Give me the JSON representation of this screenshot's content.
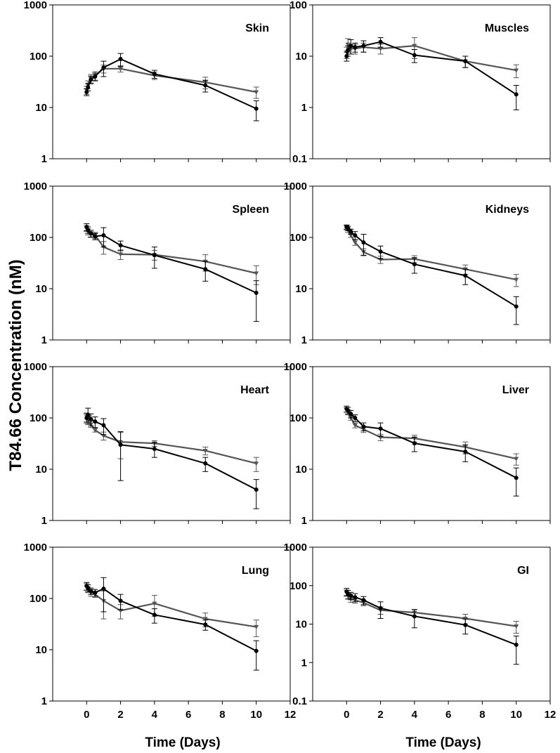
{
  "figure": {
    "ylabel": "T84.66 Concentration (nM)",
    "xlabel": "Time (Days)",
    "colors": {
      "series_black": "#000000",
      "series_gray": "#555555",
      "axis": "#000000"
    }
  },
  "chart_data": [
    {
      "type": "line",
      "title": "Skin",
      "ylim": [
        1,
        1000
      ],
      "yscale": "log",
      "xlim": [
        -2,
        12
      ],
      "xticks": [
        0,
        2,
        4,
        6,
        8,
        10,
        12
      ],
      "yticks": [
        1,
        10,
        100,
        1000
      ],
      "ytick_labels": [
        "1",
        "10",
        "100",
        "1000"
      ],
      "show_xtick_labels": false,
      "series": [
        {
          "name": "series_black",
          "x": [
            0,
            0.08,
            0.25,
            0.5,
            1,
            2,
            4,
            7,
            10
          ],
          "y": [
            20,
            25,
            35,
            40,
            60,
            88,
            45,
            27,
            9.5
          ],
          "err": [
            3,
            4,
            6,
            7,
            20,
            25,
            8,
            7,
            4
          ]
        },
        {
          "name": "series_gray",
          "x": [
            0,
            0.08,
            0.25,
            0.5,
            1,
            2,
            4,
            7,
            10
          ],
          "y": [
            22,
            28,
            37,
            42,
            57,
            57,
            42,
            31,
            20
          ],
          "err": [
            4,
            5,
            7,
            8,
            10,
            8,
            7,
            8,
            5
          ]
        }
      ]
    },
    {
      "type": "line",
      "title": "Muscles",
      "ylim": [
        0.1,
        100
      ],
      "yscale": "log",
      "xlim": [
        -2,
        12
      ],
      "xticks": [
        0,
        2,
        4,
        6,
        8,
        10,
        12
      ],
      "yticks": [
        0.1,
        1,
        10,
        100
      ],
      "ytick_labels": [
        "0.1",
        "1",
        "10",
        "100"
      ],
      "show_xtick_labels": false,
      "series": [
        {
          "name": "series_black",
          "x": [
            0,
            0.08,
            0.25,
            0.5,
            1,
            2,
            4,
            7,
            10
          ],
          "y": [
            10,
            13,
            16,
            15,
            16,
            19,
            10.5,
            8,
            1.8
          ],
          "err": [
            2,
            3,
            5,
            3,
            4,
            4,
            3,
            2,
            0.9
          ]
        },
        {
          "name": "series_gray",
          "x": [
            0,
            0.08,
            0.25,
            0.5,
            1,
            2,
            4,
            7,
            10
          ],
          "y": [
            12,
            17,
            14,
            14,
            15,
            14,
            16,
            8,
            5.3
          ],
          "err": [
            3,
            5,
            3,
            3,
            3,
            3,
            7,
            2,
            1.5
          ]
        }
      ]
    },
    {
      "type": "line",
      "title": "Spleen",
      "ylim": [
        1,
        1000
      ],
      "yscale": "log",
      "xlim": [
        -2,
        12
      ],
      "xticks": [
        0,
        2,
        4,
        6,
        8,
        10,
        12
      ],
      "yticks": [
        1,
        10,
        100,
        1000
      ],
      "ytick_labels": [
        "1",
        "10",
        "100",
        "1000"
      ],
      "show_xtick_labels": false,
      "series": [
        {
          "name": "series_black",
          "x": [
            0,
            0.08,
            0.25,
            0.5,
            1,
            2,
            4,
            7,
            10
          ],
          "y": [
            160,
            140,
            120,
            105,
            110,
            70,
            45,
            24,
            8.3
          ],
          "err": [
            25,
            20,
            18,
            15,
            45,
            15,
            20,
            10,
            6
          ]
        },
        {
          "name": "series_gray",
          "x": [
            0,
            0.08,
            0.25,
            0.5,
            1,
            2,
            4,
            7,
            10
          ],
          "y": [
            150,
            130,
            115,
            110,
            65,
            47,
            46,
            34,
            20
          ],
          "err": [
            20,
            18,
            15,
            15,
            18,
            10,
            10,
            12,
            8
          ]
        }
      ]
    },
    {
      "type": "line",
      "title": "Kidneys",
      "ylim": [
        1,
        1000
      ],
      "yscale": "log",
      "xlim": [
        -2,
        12
      ],
      "xticks": [
        0,
        2,
        4,
        6,
        8,
        10,
        12
      ],
      "yticks": [
        1,
        10,
        100,
        1000
      ],
      "ytick_labels": [
        "1",
        "10",
        "100",
        "1000"
      ],
      "show_xtick_labels": false,
      "series": [
        {
          "name": "series_black",
          "x": [
            0,
            0.08,
            0.25,
            0.5,
            1,
            2,
            4,
            7,
            10
          ],
          "y": [
            160,
            150,
            130,
            110,
            80,
            53,
            30,
            18,
            4.5
          ],
          "err": [
            15,
            15,
            15,
            20,
            35,
            15,
            10,
            6,
            2.5
          ]
        },
        {
          "name": "series_gray",
          "x": [
            0,
            0.08,
            0.25,
            0.5,
            1,
            2,
            4,
            7,
            10
          ],
          "y": [
            155,
            140,
            110,
            80,
            52,
            37,
            38,
            24,
            15
          ],
          "err": [
            15,
            15,
            10,
            10,
            8,
            6,
            6,
            5,
            4
          ]
        }
      ]
    },
    {
      "type": "line",
      "title": "Heart",
      "ylim": [
        1,
        1000
      ],
      "yscale": "log",
      "xlim": [
        -2,
        12
      ],
      "xticks": [
        0,
        2,
        4,
        6,
        8,
        10,
        12
      ],
      "yticks": [
        1,
        10,
        100,
        1000
      ],
      "ytick_labels": [
        "1",
        "10",
        "100",
        "1000"
      ],
      "show_xtick_labels": false,
      "series": [
        {
          "name": "series_black",
          "x": [
            0,
            0.08,
            0.25,
            0.5,
            1,
            2,
            4,
            7,
            10
          ],
          "y": [
            100,
            115,
            95,
            85,
            72,
            30,
            25,
            13,
            4
          ],
          "err": [
            20,
            40,
            25,
            20,
            25,
            24,
            8,
            4,
            2.3
          ]
        },
        {
          "name": "series_gray",
          "x": [
            0,
            0.08,
            0.25,
            0.5,
            1,
            2,
            4,
            7,
            10
          ],
          "y": [
            105,
            95,
            75,
            58,
            45,
            34,
            32,
            23,
            13
          ],
          "err": [
            20,
            15,
            10,
            5,
            8,
            18,
            4,
            4,
            4
          ]
        }
      ]
    },
    {
      "type": "line",
      "title": "Liver",
      "ylim": [
        1,
        1000
      ],
      "yscale": "log",
      "xlim": [
        -2,
        12
      ],
      "xticks": [
        0,
        2,
        4,
        6,
        8,
        10,
        12
      ],
      "yticks": [
        1,
        10,
        100,
        1000
      ],
      "ytick_labels": [
        "1",
        "10",
        "100",
        "1000"
      ],
      "show_xtick_labels": false,
      "series": [
        {
          "name": "series_black",
          "x": [
            0,
            0.08,
            0.25,
            0.5,
            1,
            2,
            4,
            7,
            10
          ],
          "y": [
            150,
            140,
            120,
            100,
            68,
            62,
            32,
            22,
            6.8
          ],
          "err": [
            20,
            20,
            20,
            15,
            12,
            18,
            10,
            8,
            3.8
          ]
        },
        {
          "name": "series_gray",
          "x": [
            0,
            0.08,
            0.25,
            0.5,
            1,
            2,
            4,
            7,
            10
          ],
          "y": [
            145,
            130,
            100,
            72,
            60,
            42,
            40,
            27,
            16
          ],
          "err": [
            15,
            15,
            10,
            8,
            8,
            6,
            6,
            7,
            4
          ]
        }
      ]
    },
    {
      "type": "line",
      "title": "Lung",
      "ylim": [
        1,
        1000
      ],
      "yscale": "log",
      "xlim": [
        -2,
        12
      ],
      "xticks": [
        0,
        2,
        4,
        6,
        8,
        10,
        12
      ],
      "yticks": [
        1,
        10,
        100,
        1000
      ],
      "ytick_labels": [
        "1",
        "10",
        "100",
        "1000"
      ],
      "show_xtick_labels": true,
      "series": [
        {
          "name": "series_black",
          "x": [
            0,
            0.08,
            0.25,
            0.5,
            1,
            2,
            4,
            7,
            10
          ],
          "y": [
            175,
            160,
            140,
            130,
            155,
            90,
            48,
            31,
            9.5
          ],
          "err": [
            30,
            25,
            20,
            20,
            100,
            30,
            15,
            7,
            5.5
          ]
        },
        {
          "name": "series_gray",
          "x": [
            0,
            0.08,
            0.25,
            0.5,
            1,
            2,
            4,
            7,
            10
          ],
          "y": [
            170,
            150,
            130,
            120,
            90,
            58,
            80,
            40,
            28
          ],
          "err": [
            25,
            20,
            20,
            15,
            50,
            18,
            35,
            12,
            10
          ]
        }
      ]
    },
    {
      "type": "line",
      "title": "GI",
      "ylim": [
        0.1,
        1000
      ],
      "yscale": "log",
      "xlim": [
        -2,
        12
      ],
      "xticks": [
        0,
        2,
        4,
        6,
        8,
        10,
        12
      ],
      "yticks": [
        0.1,
        1,
        10,
        100,
        1000
      ],
      "ytick_labels": [
        "0.1",
        "1",
        "10",
        "100",
        "1000"
      ],
      "show_xtick_labels": true,
      "series": [
        {
          "name": "series_black",
          "x": [
            0,
            0.08,
            0.25,
            0.5,
            1,
            2,
            4,
            7,
            10
          ],
          "y": [
            70,
            60,
            55,
            50,
            42,
            26,
            16,
            9.5,
            2.9
          ],
          "err": [
            15,
            15,
            12,
            12,
            10,
            12,
            8,
            4,
            2
          ]
        },
        {
          "name": "series_gray",
          "x": [
            0,
            0.08,
            0.25,
            0.5,
            1,
            2,
            4,
            7,
            10
          ],
          "y": [
            65,
            55,
            45,
            42,
            36,
            23,
            20,
            14,
            8.8
          ],
          "err": [
            12,
            10,
            8,
            7,
            6,
            5,
            4,
            4,
            3
          ]
        }
      ]
    }
  ]
}
